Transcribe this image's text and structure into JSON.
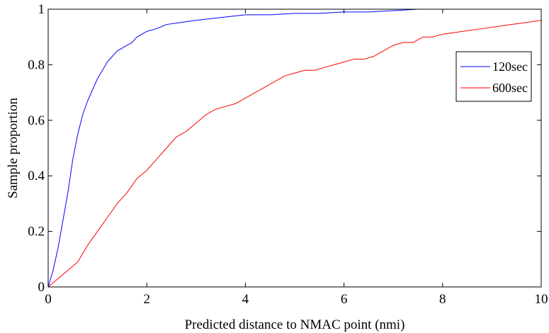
{
  "chart_data": {
    "type": "line",
    "title": "",
    "xlabel": "Predicted distance to NMAC point (nmi)",
    "ylabel": "Sample proportion",
    "xlim": [
      0,
      10
    ],
    "ylim": [
      0,
      1
    ],
    "x_ticks": [
      0,
      2,
      4,
      6,
      8,
      10
    ],
    "x_tick_labels": [
      "0",
      "2",
      "4",
      "6",
      "8",
      "10"
    ],
    "y_ticks": [
      0,
      0.2,
      0.4,
      0.6,
      0.8,
      1
    ],
    "y_tick_labels": [
      "0",
      "0.2",
      "0.4",
      "0.6",
      "0.8",
      "1"
    ],
    "grid": false,
    "legend_position": "right",
    "series": [
      {
        "name": "120sec",
        "color": "#0000ff",
        "x": [
          0,
          0.1,
          0.2,
          0.3,
          0.4,
          0.5,
          0.6,
          0.7,
          0.8,
          0.9,
          1.0,
          1.1,
          1.2,
          1.3,
          1.4,
          1.5,
          1.6,
          1.7,
          1.8,
          1.9,
          2.0,
          2.2,
          2.4,
          2.6,
          2.8,
          3.0,
          3.5,
          4.0,
          4.5,
          5.0,
          5.5,
          6.0,
          6.5,
          7.0,
          7.5
        ],
        "y": [
          0,
          0.06,
          0.14,
          0.24,
          0.34,
          0.46,
          0.55,
          0.62,
          0.67,
          0.71,
          0.75,
          0.78,
          0.81,
          0.83,
          0.85,
          0.86,
          0.87,
          0.88,
          0.9,
          0.91,
          0.92,
          0.93,
          0.945,
          0.95,
          0.955,
          0.96,
          0.97,
          0.98,
          0.98,
          0.985,
          0.985,
          0.99,
          0.99,
          0.995,
          1.0
        ]
      },
      {
        "name": "600sec",
        "color": "#ff0000",
        "x": [
          0,
          0.2,
          0.4,
          0.6,
          0.8,
          1.0,
          1.2,
          1.4,
          1.6,
          1.8,
          2.0,
          2.2,
          2.4,
          2.6,
          2.8,
          3.0,
          3.2,
          3.4,
          3.6,
          3.8,
          4.0,
          4.2,
          4.4,
          4.6,
          4.8,
          5.0,
          5.2,
          5.4,
          5.6,
          5.8,
          6.0,
          6.2,
          6.4,
          6.6,
          6.8,
          7.0,
          7.2,
          7.4,
          7.6,
          7.8,
          8.0,
          8.4,
          8.8,
          9.2,
          9.6,
          10.0
        ],
        "y": [
          0,
          0.03,
          0.06,
          0.09,
          0.15,
          0.2,
          0.25,
          0.3,
          0.34,
          0.39,
          0.42,
          0.46,
          0.5,
          0.54,
          0.56,
          0.59,
          0.62,
          0.64,
          0.65,
          0.66,
          0.68,
          0.7,
          0.72,
          0.74,
          0.76,
          0.77,
          0.78,
          0.78,
          0.79,
          0.8,
          0.81,
          0.82,
          0.82,
          0.83,
          0.85,
          0.87,
          0.88,
          0.88,
          0.9,
          0.9,
          0.91,
          0.92,
          0.93,
          0.94,
          0.95,
          0.96
        ]
      }
    ]
  }
}
